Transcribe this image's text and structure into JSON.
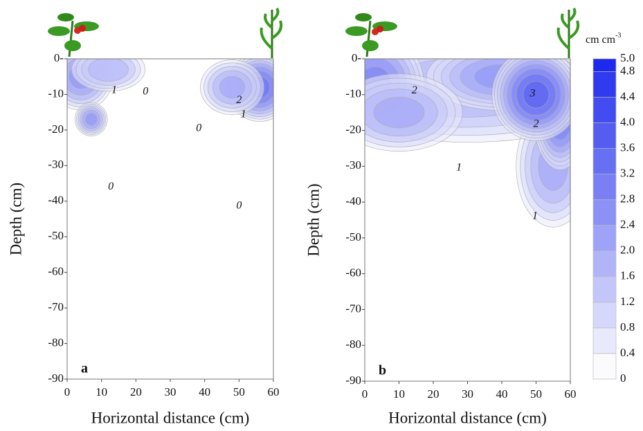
{
  "chart_data": [
    {
      "type": "contour",
      "panel_label": "a",
      "xlabel": "Horizontal distance (cm)",
      "ylabel": "Depth (cm)",
      "xlim": [
        0,
        60
      ],
      "ylim": [
        -90,
        0
      ],
      "xticks": [
        0,
        10,
        20,
        30,
        40,
        50,
        60
      ],
      "yticks": [
        {
          "value": 0,
          "label": "0-"
        },
        -10,
        -20,
        -30,
        -40,
        -50,
        -60,
        -70,
        -80,
        -90
      ],
      "hotspots": [
        {
          "x": 4,
          "y": -5,
          "value": 2.4,
          "spread_x": 6,
          "spread_y": 6
        },
        {
          "x": 7,
          "y": -17,
          "value": 2.4,
          "spread_x": 3,
          "spread_y": 3
        },
        {
          "x": 12,
          "y": -3,
          "value": 1.8,
          "spread_x": 7,
          "spread_y": 4
        },
        {
          "x": 56,
          "y": -8,
          "value": 3.2,
          "spread_x": 6,
          "spread_y": 6
        },
        {
          "x": 48,
          "y": -8,
          "value": 2.0,
          "spread_x": 6,
          "spread_y": 5
        }
      ],
      "contour_labels": [
        {
          "value": 1,
          "x": 13.7,
          "y": -8.9
        },
        {
          "value": 0,
          "x": 22.8,
          "y": -9.3
        },
        {
          "value": 2,
          "x": 50,
          "y": -11.7
        },
        {
          "value": 1,
          "x": 51.3,
          "y": -15.7
        },
        {
          "value": 0,
          "x": 38.3,
          "y": -19.6
        },
        {
          "value": 0,
          "x": 12.7,
          "y": -36
        },
        {
          "value": 0,
          "x": 50,
          "y": -41.4
        }
      ]
    },
    {
      "type": "contour",
      "panel_label": "b",
      "xlabel": "Horizontal distance (cm)",
      "ylabel": "Depth (cm)",
      "xlim": [
        0,
        60
      ],
      "ylim": [
        -90,
        0
      ],
      "xticks": [
        0,
        10,
        20,
        30,
        40,
        50,
        60
      ],
      "yticks": [
        {
          "value": 0,
          "label": "0-"
        },
        -10,
        -20,
        -30,
        -40,
        -50,
        -60,
        -70,
        -80,
        -90
      ],
      "hotspots": [
        {
          "x": 30,
          "y": -8,
          "value": 1.8,
          "spread_x": 30,
          "spread_y": 10
        },
        {
          "x": 40,
          "y": -5,
          "value": 2.4,
          "spread_x": 14,
          "spread_y": 6
        },
        {
          "x": 3,
          "y": -7,
          "value": 2.8,
          "spread_x": 9,
          "spread_y": 9
        },
        {
          "x": 10,
          "y": -15,
          "value": 2.0,
          "spread_x": 12,
          "spread_y": 7
        },
        {
          "x": 55,
          "y": -30,
          "value": 2.0,
          "spread_x": 7,
          "spread_y": 11
        },
        {
          "x": 57,
          "y": -15,
          "value": 3.2,
          "spread_x": 5,
          "spread_y": 10
        },
        {
          "x": 50,
          "y": -10,
          "value": 3.6,
          "spread_x": 8,
          "spread_y": 8
        }
      ],
      "contour_labels": [
        {
          "value": 2,
          "x": 14.5,
          "y": -8.9
        },
        {
          "value": 3,
          "x": 49,
          "y": -9.8
        },
        {
          "value": 2,
          "x": 50,
          "y": -18.3
        },
        {
          "value": 1,
          "x": 27.5,
          "y": -30.5
        },
        {
          "value": 1,
          "x": 49.7,
          "y": -44
        }
      ]
    }
  ],
  "colorbar": {
    "label": "cm cm",
    "label_superscript": "-3",
    "lim": [
      0,
      5
    ],
    "ticks": [
      0,
      0.4,
      0.8,
      1.2,
      1.6,
      {
        "value": 2,
        "label": "2.0"
      },
      2.4,
      2.8,
      3.2,
      3.6,
      {
        "value": 4,
        "label": "4.0"
      },
      4.4,
      4.8,
      {
        "value": 5,
        "label": "5.0"
      }
    ],
    "color_low": "#fbfbfe",
    "color_high": "#1420ec"
  }
}
